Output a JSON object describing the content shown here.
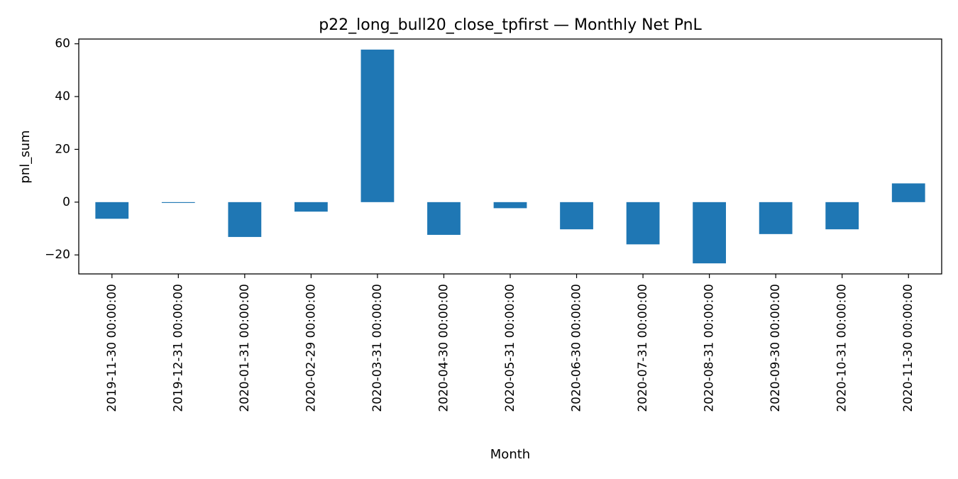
{
  "chart_data": {
    "type": "bar",
    "title": "p22_long_bull20_close_tpfirst — Monthly Net PnL",
    "xlabel": "Month",
    "ylabel": "pnl_sum",
    "categories": [
      "2019-11-30 00:00:00",
      "2019-12-31 00:00:00",
      "2020-01-31 00:00:00",
      "2020-02-29 00:00:00",
      "2020-03-31 00:00:00",
      "2020-04-30 00:00:00",
      "2020-05-31 00:00:00",
      "2020-06-30 00:00:00",
      "2020-07-31 00:00:00",
      "2020-08-31 00:00:00",
      "2020-09-30 00:00:00",
      "2020-10-31 00:00:00",
      "2020-11-30 00:00:00"
    ],
    "values": [
      -6.3,
      -0.3,
      -13.2,
      -3.6,
      57.8,
      -12.4,
      -2.3,
      -10.3,
      -16.0,
      -23.2,
      -12.1,
      -10.3,
      7.1
    ],
    "ylim": [
      -27.2,
      61.8
    ],
    "yticks": [
      -20,
      0,
      20,
      40,
      60
    ],
    "ytick_labels": [
      "−20",
      "0",
      "20",
      "40",
      "60"
    ],
    "grid": false,
    "legend": "none",
    "bar_color": "#1f77b4"
  }
}
